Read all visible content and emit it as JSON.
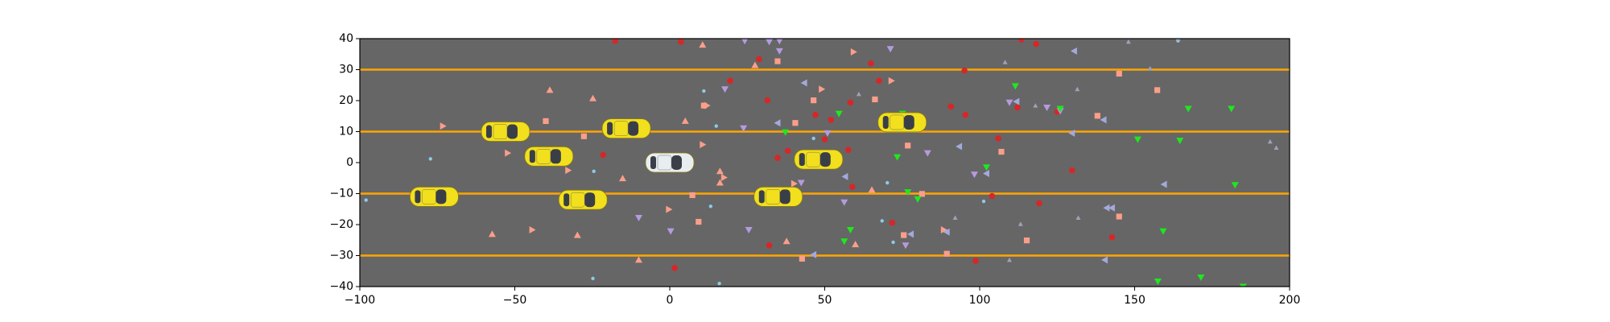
{
  "chart_data": {
    "type": "scatter",
    "xlim": [
      -100,
      200
    ],
    "ylim": [
      -40,
      40
    ],
    "xticks": [
      {
        "value": -100,
        "label": "−100"
      },
      {
        "value": -50,
        "label": "−50"
      },
      0,
      50,
      100,
      150,
      200
    ],
    "yticks": [
      {
        "value": -40,
        "label": "−40"
      },
      {
        "value": -30,
        "label": "−30"
      },
      {
        "value": -20,
        "label": "−20"
      },
      {
        "value": -10,
        "label": "−10"
      },
      0,
      10,
      20,
      30,
      40
    ],
    "background": "#666666",
    "lanes": {
      "color": "#ffa500",
      "values": [
        -30,
        -10,
        10,
        30
      ]
    },
    "series": [
      {
        "marker": "circle",
        "color": "#d62728",
        "x": [
          -17.6,
          3.6,
          19.5,
          28.8,
          31.5,
          34.8,
          38.1,
          47,
          50,
          52,
          58.3,
          57.6,
          58.9,
          64.9,
          67.5,
          71.8,
          90.7,
          95.1,
          95.4,
          106,
          104,
          112.2,
          113.5,
          118.2,
          119.2,
          125.1,
          129.8,
          142.7,
          1.6,
          32.1,
          98.7,
          -21.5
        ],
        "values": [
          39.3,
          39,
          26.4,
          33.4,
          20.1,
          1.5,
          3.8,
          15.4,
          7.5,
          13.8,
          19.4,
          4.1,
          -7.8,
          32,
          26.4,
          -19.4,
          18.1,
          29.7,
          15.4,
          7.8,
          -10.8,
          17.8,
          39.7,
          38.3,
          -13.1,
          16.4,
          -2.5,
          -24.1,
          -34,
          -26.7,
          -31.7,
          2.5
        ]
      },
      {
        "marker": "square",
        "color": "#fa9e8a",
        "x": [
          -40,
          -27.7,
          11,
          34.8,
          40.5,
          46.4,
          66.2,
          76.8,
          81.4,
          75.5,
          9.3,
          7.3,
          107,
          115.2,
          138,
          145,
          157.3,
          145,
          89.4,
          42.7
        ],
        "values": [
          13.4,
          8.5,
          18.4,
          32.7,
          12.8,
          20.1,
          20.4,
          5.5,
          -10.1,
          -23.4,
          -19.1,
          -10.5,
          3.5,
          -25.1,
          15.1,
          28.7,
          23.4,
          -17.4,
          -29.4,
          -31
        ]
      },
      {
        "marker": "triangle-up",
        "color": "#fa9e8a",
        "x": [
          10.6,
          -38.7,
          -24.8,
          -15.2,
          5,
          16.2,
          16.2,
          27.5,
          37.7,
          59.9,
          65.2,
          -57.3,
          -29.8,
          -10
        ],
        "values": [
          38,
          23.4,
          20.7,
          -5.1,
          13.4,
          -2.8,
          -6.5,
          31.4,
          -25.4,
          -26.4,
          -8.8,
          -23.1,
          -23.4,
          -31.4
        ]
      },
      {
        "marker": "triangle-right",
        "color": "#fa9e8a",
        "x": [
          -73.2,
          -52.3,
          -32.8,
          -44.4,
          12,
          10.6,
          17.5,
          -0.3,
          40.1,
          49,
          59.3,
          71.5,
          88.4
        ],
        "values": [
          11.8,
          3.1,
          -2.5,
          -21.7,
          18.4,
          5.8,
          -4.8,
          -15.1,
          -6.8,
          23.7,
          35.7,
          26.4,
          -21.7
        ]
      },
      {
        "marker": "triangle-down",
        "color": "#b59ae0",
        "x": [
          24.2,
          32.1,
          35.4,
          35.4,
          17.8,
          23.8,
          42.4,
          71.2,
          83.2,
          50.9,
          -10,
          0.3,
          25.5,
          76.1,
          98.3,
          121.7,
          109.6,
          126,
          56.3
        ],
        "values": [
          39.3,
          39,
          39.3,
          36,
          23.7,
          11.1,
          -6.5,
          36.7,
          3.1,
          9.5,
          -17.8,
          -22.1,
          -21.7,
          -26.7,
          -3.8,
          17.8,
          19.4,
          16.7,
          -12.8
        ]
      },
      {
        "marker": "triangle-left",
        "color": "#a3a9dc",
        "x": [
          34.8,
          43.4,
          56.6,
          46.4,
          77.8,
          93.4,
          89.4,
          102.2,
          111.9,
          129.8,
          130.5,
          140,
          141,
          140.4,
          159.5,
          142.7
        ],
        "values": [
          12.8,
          25.7,
          -4.5,
          -29.7,
          -23.1,
          5.2,
          -22.4,
          -3.5,
          19.7,
          9.5,
          36,
          13.8,
          -14.6,
          -31.4,
          -7,
          -14.6
        ]
      },
      {
        "marker": "triangle-down",
        "color": "#1ee81e",
        "x": [
          37.3,
          54.6,
          75.1,
          73.4,
          76.8,
          80,
          58.3,
          56.3,
          102.2,
          111.5,
          126,
          151,
          164.6,
          167.3,
          181.2,
          182.4,
          159.2,
          157.5,
          171.4,
          185
        ],
        "values": [
          9.8,
          15.8,
          15.8,
          1.8,
          -9.5,
          -11.8,
          -21.7,
          -25.4,
          -1.5,
          24.7,
          17.4,
          7.5,
          7.1,
          17.4,
          17.4,
          -7.2,
          -22.1,
          -38.3,
          -37,
          -40
        ]
      },
      {
        "marker": "dot",
        "color": "#8ecae6",
        "x": [
          -98,
          -77.2,
          -24.8,
          -24.5,
          11,
          15,
          16,
          46.4,
          68.5,
          72.1,
          70.2,
          101.3,
          164,
          13.2
        ],
        "values": [
          -12.1,
          1.2,
          -37.4,
          -2.8,
          23.1,
          11.8,
          -39,
          7.8,
          -18.8,
          -25.7,
          -6.5,
          -12.5,
          39.3,
          -14.1
        ]
      },
      {
        "marker": "small-triangle-up",
        "color": "#9da2b8",
        "x": [
          108.2,
          113.2,
          131.8,
          61,
          118,
          155,
          148,
          193.7,
          195.7,
          164,
          109.6,
          131.5,
          92.1
        ],
        "values": [
          32.4,
          -19.8,
          -17.8,
          22.1,
          18.4,
          30.4,
          39,
          6.8,
          4.8,
          40,
          -31.4,
          23.7,
          -17.8
        ]
      },
      {
        "marker": "car",
        "color": "#f2df1e",
        "x": [
          -76,
          -53,
          -39,
          -28,
          -14,
          35,
          48,
          75
        ],
        "values": [
          -11,
          10,
          2,
          -12,
          11,
          -11,
          1,
          13
        ]
      },
      {
        "marker": "car",
        "color": "#e8eef0",
        "x": [
          0
        ],
        "values": [
          0
        ]
      }
    ]
  }
}
